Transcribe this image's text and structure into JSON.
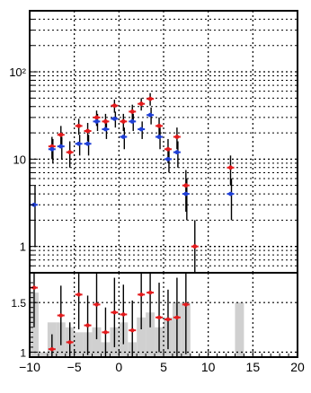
{
  "colors": {
    "frame": "#000000",
    "grid": "#000000",
    "series_a_marker": "#e31a1c",
    "series_b_marker": "#1f3fd6",
    "error_bar": "#000000",
    "ratio_fill": "#d0d0d0"
  },
  "chart_data": [
    {
      "type": "scatter",
      "panel": "top",
      "title": "",
      "xlabel": "",
      "ylabel": "",
      "xlim": [
        -10,
        20
      ],
      "ylim": [
        0.5,
        500
      ],
      "y_scale": "log",
      "grid": true,
      "y_tick_labels": [
        {
          "value": 1,
          "label": "1"
        },
        {
          "value": 10,
          "label": "10"
        },
        {
          "value": 100,
          "label": "10²"
        }
      ],
      "series": [
        {
          "marker_color": "red",
          "x": [
            -7.5,
            -6.5,
            -5.5,
            -4.5,
            -3.5,
            -2.5,
            -1.5,
            -0.5,
            0.5,
            1.5,
            2.5,
            3.5,
            4.5,
            5.5,
            6.5,
            7.5,
            8.5,
            12.5
          ],
          "y": [
            14,
            19,
            12,
            24,
            21,
            30,
            27,
            41,
            27,
            35,
            43,
            49,
            24,
            13,
            18,
            5,
            1,
            8
          ],
          "yerr": [
            4,
            5,
            4,
            5,
            5,
            6,
            6,
            7,
            6,
            7,
            7,
            8,
            6,
            4,
            5,
            2.5,
            1,
            3
          ]
        },
        {
          "marker_color": "blue",
          "x": [
            -9.5,
            -7.5,
            -6.5,
            -4.5,
            -3.5,
            -2.5,
            -1.5,
            -0.5,
            0.5,
            1.5,
            2.5,
            3.5,
            4.5,
            5.5,
            6.5,
            7.5,
            12.5
          ],
          "y": [
            3,
            13,
            14,
            15,
            15,
            27,
            22,
            29,
            18,
            27,
            22,
            32,
            18,
            10,
            12,
            4,
            4
          ],
          "yerr": [
            2,
            4,
            4,
            4,
            4,
            6,
            5,
            6,
            5,
            6,
            5,
            7,
            5,
            3,
            4,
            2,
            2
          ]
        }
      ]
    },
    {
      "type": "bar",
      "panel": "bottom",
      "title": "",
      "xlabel": "",
      "ylabel": "",
      "xlim": [
        -10,
        20
      ],
      "ylim": [
        0.95,
        1.8
      ],
      "grid": true,
      "x_tick_labels": [
        "−10",
        "−5",
        "0",
        "5",
        "10",
        "15",
        "20"
      ],
      "x_tick_values": [
        -10,
        -5,
        0,
        5,
        10,
        15,
        20
      ],
      "y_tick_labels": [
        {
          "value": 1,
          "label": "1"
        },
        {
          "value": 1.5,
          "label": "1.5"
        }
      ],
      "bins": {
        "edges_start": -10,
        "bin_width": 1,
        "values": [
          1.6,
          1.0,
          1.3,
          1.3,
          1.25,
          1.2,
          1.2,
          1.25,
          1.1,
          1.25,
          1.3,
          1.1,
          1.35,
          1.4,
          1.25,
          1.35,
          1.5,
          1.5,
          0,
          0,
          0,
          0,
          0,
          1.5,
          0,
          0,
          0,
          0,
          0,
          0
        ]
      },
      "points": {
        "marker_color": "red",
        "x": [
          -9.5,
          -7.5,
          -6.5,
          -5.5,
          -4.5,
          -3.5,
          -2.5,
          -1.5,
          -0.5,
          0.5,
          1.5,
          2.5,
          3.5,
          4.5,
          5.5,
          6.5,
          7.5
        ],
        "y": [
          1.65,
          1.03,
          1.37,
          1.1,
          1.58,
          1.27,
          1.48,
          1.2,
          1.4,
          1.38,
          1.22,
          1.58,
          1.6,
          1.35,
          1.33,
          1.35,
          1.48
        ],
        "yerr": [
          0.4,
          0.15,
          0.3,
          0.2,
          0.35,
          0.3,
          0.35,
          0.25,
          0.35,
          0.3,
          0.3,
          0.35,
          0.35,
          0.35,
          0.3,
          0.4,
          0.5
        ]
      }
    }
  ]
}
